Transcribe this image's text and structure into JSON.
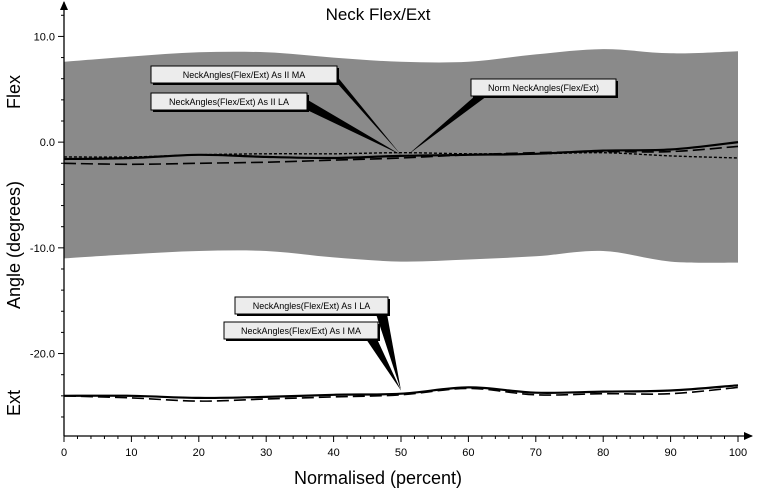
{
  "chart_data": {
    "type": "line",
    "title": "Neck Flex/Ext",
    "xlabel": "Normalised (percent)",
    "ylabel": "Angle (degrees)",
    "y_top_label": "Flex",
    "y_bottom_label": "Ext",
    "xlim": [
      0,
      100
    ],
    "ylim": [
      -27.8,
      12.5
    ],
    "x_ticks": [
      0,
      10,
      20,
      30,
      40,
      50,
      60,
      70,
      80,
      90,
      100
    ],
    "y_ticks": [
      10.0,
      0.0,
      -10.0,
      -20.0
    ],
    "y_tick_labels": [
      "10.0",
      "0.0",
      "-10.0",
      "-20.0"
    ],
    "grid": false,
    "colors": {
      "norm_band": "#8a8a8a",
      "line": "#000000"
    },
    "norm_band": {
      "x": [
        0,
        10,
        20,
        30,
        40,
        50,
        60,
        70,
        80,
        90,
        100
      ],
      "upper": [
        7.6,
        8.1,
        8.5,
        8.5,
        8.0,
        7.6,
        7.6,
        8.3,
        8.8,
        8.4,
        8.6
      ],
      "lower": [
        -11.0,
        -10.6,
        -10.3,
        -10.3,
        -10.9,
        -11.3,
        -11.1,
        -10.8,
        -10.3,
        -11.3,
        -11.4
      ]
    },
    "series": [
      {
        "name": "NeckAngles(Flex/Ext) As II MA",
        "style": "solid",
        "x": [
          0,
          10,
          20,
          30,
          40,
          50,
          60,
          70,
          80,
          90,
          100
        ],
        "y": [
          -1.6,
          -1.5,
          -1.2,
          -1.4,
          -1.5,
          -1.3,
          -1.2,
          -1.1,
          -0.8,
          -0.7,
          0.0
        ]
      },
      {
        "name": "NeckAngles(Flex/Ext) As II LA",
        "style": "dashed",
        "x": [
          0,
          10,
          20,
          30,
          40,
          50,
          60,
          70,
          80,
          90,
          100
        ],
        "y": [
          -2.0,
          -2.1,
          -2.0,
          -1.9,
          -1.7,
          -1.5,
          -1.2,
          -1.0,
          -0.9,
          -0.9,
          -0.4
        ]
      },
      {
        "name": "Norm NeckAngles(Flex/Ext)",
        "style": "dotted",
        "x": [
          0,
          10,
          20,
          30,
          40,
          50,
          60,
          70,
          80,
          90,
          100
        ],
        "y": [
          -1.4,
          -1.4,
          -1.2,
          -1.1,
          -1.1,
          -1.0,
          -1.1,
          -1.1,
          -1.0,
          -1.3,
          -1.5
        ]
      },
      {
        "name": "NeckAngles(Flex/Ext) As I LA",
        "style": "solid",
        "x": [
          0,
          10,
          20,
          30,
          40,
          50,
          60,
          70,
          80,
          90,
          100
        ],
        "y": [
          -24.0,
          -24.0,
          -24.2,
          -24.1,
          -23.9,
          -23.8,
          -23.2,
          -23.7,
          -23.6,
          -23.5,
          -23.0
        ]
      },
      {
        "name": "NeckAngles(Flex/Ext) As I MA",
        "style": "dashed",
        "x": [
          0,
          10,
          20,
          30,
          40,
          50,
          60,
          70,
          80,
          90,
          100
        ],
        "y": [
          -24.0,
          -24.2,
          -24.5,
          -24.3,
          -24.1,
          -23.9,
          -23.3,
          -23.9,
          -23.8,
          -23.8,
          -23.2
        ]
      }
    ],
    "annotations": [
      {
        "text": "NeckAngles(Flex/Ext) As II MA",
        "target_series": 0,
        "x": 50,
        "y": -1.2
      },
      {
        "text": "NeckAngles(Flex/Ext) As II LA",
        "target_series": 1,
        "x": 50,
        "y": -1.2
      },
      {
        "text": "Norm NeckAngles(Flex/Ext)",
        "target_series": 2,
        "x": 51,
        "y": -1.2
      },
      {
        "text": "NeckAngles(Flex/Ext) As I LA",
        "target_series": 3,
        "x": 50,
        "y": -23.5
      },
      {
        "text": "NeckAngles(Flex/Ext) As I MA",
        "target_series": 4,
        "x": 50,
        "y": -23.5
      }
    ]
  }
}
